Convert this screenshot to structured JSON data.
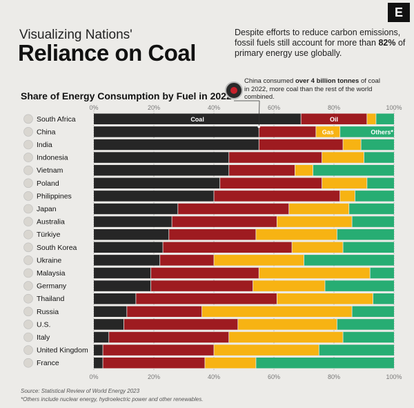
{
  "brand_letter": "E",
  "title_line1": "Visualizing Nations'",
  "title_line2": "Reliance on Coal",
  "dek_prefix": "Despite efforts to reduce carbon emissions, fossil fuels still account for more than ",
  "dek_highlight": "82%",
  "dek_suffix": " of primary energy use globally.",
  "callout_prefix": "China consumed ",
  "callout_highlight": "over 4 billion tonnes",
  "callout_suffix": " of coal in 2022, more coal than the rest of the world combined.",
  "source": "Source: Statistical Review of World Energy 2023",
  "footnote": "*Others include nuclear energy, hydroelectric power and other renewables.",
  "colors": {
    "coal": "#262626",
    "oil": "#9e1b20",
    "gas": "#f7b313",
    "others": "#27ad73",
    "divider": "#ecebe8"
  },
  "chart_data": {
    "type": "bar",
    "orientation": "horizontal",
    "stacked": true,
    "title": "Share of Energy Consumption by Fuel in 2022",
    "xlim": [
      0,
      100
    ],
    "x_ticks": [
      "0%",
      "20%",
      "40%",
      "60%",
      "80%",
      "100%"
    ],
    "categories": [
      "South Africa",
      "China",
      "India",
      "Indonesia",
      "Vietnam",
      "Poland",
      "Philippines",
      "Japan",
      "Australia",
      "Türkiye",
      "South Korea",
      "Ukraine",
      "Malaysia",
      "Germany",
      "Thailand",
      "Russia",
      "U.S.",
      "Italy",
      "United Kingdom",
      "France"
    ],
    "series": [
      {
        "name": "Coal",
        "values": [
          69,
          55,
          55,
          45,
          45,
          42,
          40,
          28,
          26,
          25,
          23,
          22,
          19,
          19,
          14,
          11,
          10,
          5,
          3,
          3
        ]
      },
      {
        "name": "Oil",
        "values": [
          22,
          19,
          28,
          31,
          22,
          34,
          42,
          37,
          35,
          29,
          43,
          18,
          36,
          34,
          47,
          25,
          38,
          40,
          37,
          34
        ]
      },
      {
        "name": "Gas",
        "values": [
          3,
          8,
          6,
          14,
          6,
          15,
          5,
          20,
          25,
          27,
          17,
          30,
          37,
          24,
          32,
          50,
          33,
          38,
          35,
          17
        ]
      },
      {
        "name": "Others*",
        "values": [
          6,
          18,
          11,
          10,
          27,
          9,
          13,
          15,
          14,
          19,
          17,
          30,
          8,
          23,
          7,
          14,
          19,
          17,
          25,
          46
        ]
      }
    ],
    "legend_placement": "inline-top-row",
    "grid": "vertical-dotted",
    "annotation": "China consumed over 4 billion tonnes of coal in 2022, more coal than the rest of the world combined."
  }
}
